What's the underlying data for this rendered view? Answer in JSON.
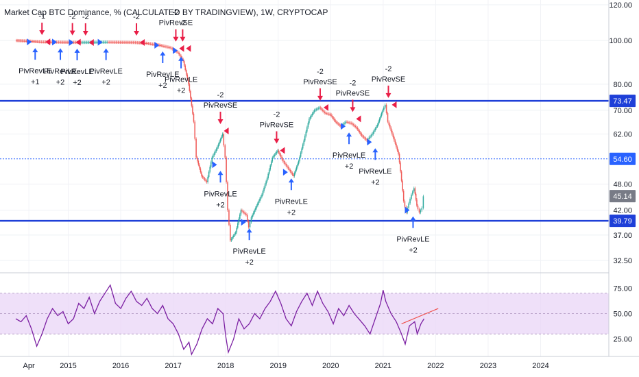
{
  "title": "Market Cap BTC Dominance, % (CALCULATED BY TRADINGVIEW), 1W, CRYPTOCAP",
  "colors": {
    "up": "#26a69a",
    "down": "#ef5350",
    "level": "#1e3fd8",
    "level_dashed": "#2962ff",
    "rsi": "#7b1fa2",
    "rsi_band": "#e9d5f7",
    "long_arrow": "#2962ff",
    "short_arrow": "#e91e47",
    "trendline": "#ef5350",
    "tag_grey": "#787b86"
  },
  "chart_data": [
    {
      "type": "candlestick",
      "title": "Market Cap BTC Dominance, % (CALCULATED BY TRADINGVIEW), 1W, CRYPTOCAP",
      "xlabel": "",
      "ylabel": "",
      "x_ticks": [
        {
          "x": 2014.25,
          "label": "Apr"
        },
        {
          "x": 2015.0,
          "label": "2015"
        },
        {
          "x": 2016.0,
          "label": "2016"
        },
        {
          "x": 2017.0,
          "label": "2017"
        },
        {
          "x": 2018.0,
          "label": "2018"
        },
        {
          "x": 2019.0,
          "label": "2019"
        },
        {
          "x": 2020.0,
          "label": "2020"
        },
        {
          "x": 2021.0,
          "label": "2021"
        },
        {
          "x": 2022.0,
          "label": "2022"
        },
        {
          "x": 2023.0,
          "label": "2023"
        },
        {
          "x": 2024.0,
          "label": "2024"
        }
      ],
      "xlim": [
        2013.7,
        2025.3
      ],
      "y_ticks": [
        32.5,
        37.0,
        42.0,
        48.0,
        62.0,
        70.0,
        80.0,
        100.0,
        120.0
      ],
      "ylim": [
        30.5,
        123
      ],
      "y_scale": "log",
      "series": [
        {
          "name": "",
          "points": [
            [
              2014.0,
              100.0
            ],
            [
              2014.25,
              99.7
            ],
            [
              2014.5,
              99.3
            ],
            [
              2014.75,
              99.2
            ],
            [
              2015.0,
              99.1
            ],
            [
              2015.25,
              99.0
            ],
            [
              2015.5,
              99.1
            ],
            [
              2015.75,
              99.2
            ],
            [
              2016.0,
              99.1
            ],
            [
              2016.25,
              99.0
            ],
            [
              2016.5,
              98.6
            ],
            [
              2016.75,
              97.6
            ],
            [
              2016.95,
              96.4
            ],
            [
              2017.1,
              94.0
            ],
            [
              2017.2,
              90.0
            ],
            [
              2017.3,
              80.0
            ],
            [
              2017.4,
              66.0
            ],
            [
              2017.45,
              55.0
            ],
            [
              2017.55,
              50.0
            ],
            [
              2017.65,
              48.5
            ],
            [
              2017.75,
              55.0
            ],
            [
              2017.85,
              58.0
            ],
            [
              2017.95,
              62.0
            ],
            [
              2018.0,
              55.0
            ],
            [
              2018.05,
              42.0
            ],
            [
              2018.1,
              36.0
            ],
            [
              2018.2,
              37.5
            ],
            [
              2018.3,
              42.0
            ],
            [
              2018.4,
              41.0
            ],
            [
              2018.45,
              38.5
            ],
            [
              2018.5,
              40.5
            ],
            [
              2018.6,
              43.0
            ],
            [
              2018.7,
              45.5
            ],
            [
              2018.8,
              49.5
            ],
            [
              2018.9,
              55.0
            ],
            [
              2019.0,
              57.0
            ],
            [
              2019.1,
              54.0
            ],
            [
              2019.2,
              52.0
            ],
            [
              2019.3,
              50.0
            ],
            [
              2019.4,
              54.0
            ],
            [
              2019.5,
              60.0
            ],
            [
              2019.6,
              67.0
            ],
            [
              2019.7,
              70.0
            ],
            [
              2019.8,
              71.0
            ],
            [
              2019.9,
              69.0
            ],
            [
              2020.0,
              68.5
            ],
            [
              2020.1,
              66.0
            ],
            [
              2020.2,
              64.5
            ],
            [
              2020.3,
              66.0
            ],
            [
              2020.4,
              65.5
            ],
            [
              2020.5,
              64.0
            ],
            [
              2020.6,
              61.5
            ],
            [
              2020.7,
              60.0
            ],
            [
              2020.8,
              62.0
            ],
            [
              2020.9,
              65.0
            ],
            [
              2021.0,
              70.0
            ],
            [
              2021.05,
              72.0
            ],
            [
              2021.1,
              66.0
            ],
            [
              2021.2,
              61.0
            ],
            [
              2021.3,
              56.0
            ],
            [
              2021.4,
              44.0
            ],
            [
              2021.45,
              41.5
            ],
            [
              2021.5,
              43.5
            ],
            [
              2021.55,
              45.5
            ],
            [
              2021.6,
              47.0
            ],
            [
              2021.65,
              43.0
            ],
            [
              2021.7,
              41.5
            ],
            [
              2021.75,
              42.5
            ],
            [
              2021.78,
              45.1
            ]
          ]
        }
      ],
      "levels": [
        {
          "value": 73.47,
          "style": "solid",
          "label": "73.47"
        },
        {
          "value": 54.6,
          "style": "dashed",
          "label": "54.60"
        },
        {
          "value": 39.79,
          "style": "solid",
          "label": "39.79"
        }
      ],
      "last_price": {
        "value": 45.14,
        "label": "45.14"
      },
      "signals": [
        {
          "x": 2014.37,
          "y": 99.3,
          "side": "long",
          "label": "PivRevLE",
          "count": "+1"
        },
        {
          "x": 2014.5,
          "y": 99.3,
          "side": "short",
          "label": "",
          "count": "-1"
        },
        {
          "x": 2014.85,
          "y": 99.2,
          "side": "long",
          "label": "PivRevLE",
          "count": "+2"
        },
        {
          "x": 2015.08,
          "y": 99.1,
          "side": "short",
          "label": "",
          "count": "-2"
        },
        {
          "x": 2015.17,
          "y": 99.0,
          "side": "long",
          "label": "PivRevLE",
          "count": "+2"
        },
        {
          "x": 2015.33,
          "y": 99.0,
          "side": "short",
          "label": "",
          "count": "-2"
        },
        {
          "x": 2015.72,
          "y": 99.1,
          "side": "long",
          "label": "PivRevLE",
          "count": "+2"
        },
        {
          "x": 2016.3,
          "y": 99.0,
          "side": "short",
          "label": "",
          "count": "-2"
        },
        {
          "x": 2016.8,
          "y": 97.6,
          "side": "long",
          "label": "PivRevLE",
          "count": "+2"
        },
        {
          "x": 2017.05,
          "y": 96.0,
          "side": "short",
          "label": "PivRevSE",
          "count": "-2"
        },
        {
          "x": 2017.15,
          "y": 95.0,
          "side": "long",
          "label": "PivRevLE",
          "count": "+2"
        },
        {
          "x": 2017.18,
          "y": 96.0,
          "side": "short",
          "label": "",
          "count": "-2"
        },
        {
          "x": 2017.9,
          "y": 63.0,
          "side": "short",
          "label": "PivRevSE",
          "count": "-2"
        },
        {
          "x": 2017.9,
          "y": 53.0,
          "side": "long",
          "label": "PivRevLE",
          "count": "+2"
        },
        {
          "x": 2018.45,
          "y": 39.5,
          "side": "long",
          "label": "PivRevLE",
          "count": "+2"
        },
        {
          "x": 2018.97,
          "y": 57.0,
          "side": "short",
          "label": "PivRevSE",
          "count": "-2"
        },
        {
          "x": 2019.25,
          "y": 51.0,
          "side": "long",
          "label": "PivRevLE",
          "count": "+2"
        },
        {
          "x": 2019.8,
          "y": 71.0,
          "side": "short",
          "label": "PivRevSE",
          "count": "-2"
        },
        {
          "x": 2020.35,
          "y": 64.5,
          "side": "long",
          "label": "PivRevLE",
          "count": "+2"
        },
        {
          "x": 2020.42,
          "y": 67.0,
          "side": "short",
          "label": "PivRevSE",
          "count": "-2"
        },
        {
          "x": 2020.85,
          "y": 59.5,
          "side": "long",
          "label": "PivRevLE",
          "count": "+2"
        },
        {
          "x": 2021.1,
          "y": 72.0,
          "side": "short",
          "label": "PivRevSE",
          "count": "-2"
        },
        {
          "x": 2021.57,
          "y": 42.0,
          "side": "long",
          "label": "PivRevLE",
          "count": "+2"
        }
      ]
    },
    {
      "type": "line",
      "title": "",
      "xlabel": "",
      "ylabel": "",
      "y_ticks": [
        25.0,
        50.0,
        75.0
      ],
      "ylim": [
        8,
        90
      ],
      "band": [
        30,
        70
      ],
      "series": [
        {
          "name": "",
          "points": [
            [
              2014.0,
              45
            ],
            [
              2014.1,
              42
            ],
            [
              2014.2,
              48
            ],
            [
              2014.3,
              35
            ],
            [
              2014.4,
              18
            ],
            [
              2014.5,
              30
            ],
            [
              2014.6,
              45
            ],
            [
              2014.7,
              55
            ],
            [
              2014.8,
              48
            ],
            [
              2014.9,
              52
            ],
            [
              2015.0,
              40
            ],
            [
              2015.1,
              45
            ],
            [
              2015.2,
              60
            ],
            [
              2015.3,
              55
            ],
            [
              2015.4,
              66
            ],
            [
              2015.5,
              50
            ],
            [
              2015.6,
              62
            ],
            [
              2015.7,
              70
            ],
            [
              2015.8,
              78
            ],
            [
              2015.9,
              60
            ],
            [
              2016.0,
              55
            ],
            [
              2016.1,
              65
            ],
            [
              2016.2,
              72
            ],
            [
              2016.3,
              62
            ],
            [
              2016.4,
              58
            ],
            [
              2016.5,
              65
            ],
            [
              2016.6,
              55
            ],
            [
              2016.7,
              50
            ],
            [
              2016.8,
              58
            ],
            [
              2016.9,
              45
            ],
            [
              2017.0,
              40
            ],
            [
              2017.1,
              30
            ],
            [
              2017.2,
              15
            ],
            [
              2017.3,
              22
            ],
            [
              2017.35,
              10
            ],
            [
              2017.45,
              20
            ],
            [
              2017.55,
              35
            ],
            [
              2017.65,
              45
            ],
            [
              2017.75,
              40
            ],
            [
              2017.85,
              55
            ],
            [
              2017.95,
              50
            ],
            [
              2018.0,
              28
            ],
            [
              2018.05,
              12
            ],
            [
              2018.15,
              25
            ],
            [
              2018.25,
              45
            ],
            [
              2018.35,
              35
            ],
            [
              2018.45,
              40
            ],
            [
              2018.55,
              50
            ],
            [
              2018.65,
              45
            ],
            [
              2018.75,
              55
            ],
            [
              2018.85,
              62
            ],
            [
              2018.95,
              72
            ],
            [
              2019.05,
              60
            ],
            [
              2019.15,
              45
            ],
            [
              2019.25,
              38
            ],
            [
              2019.35,
              52
            ],
            [
              2019.45,
              62
            ],
            [
              2019.55,
              70
            ],
            [
              2019.65,
              58
            ],
            [
              2019.75,
              72
            ],
            [
              2019.85,
              60
            ],
            [
              2019.95,
              52
            ],
            [
              2020.05,
              40
            ],
            [
              2020.15,
              55
            ],
            [
              2020.25,
              48
            ],
            [
              2020.35,
              58
            ],
            [
              2020.45,
              50
            ],
            [
              2020.55,
              44
            ],
            [
              2020.65,
              38
            ],
            [
              2020.75,
              30
            ],
            [
              2020.85,
              45
            ],
            [
              2020.95,
              60
            ],
            [
              2021.0,
              73
            ],
            [
              2021.05,
              62
            ],
            [
              2021.15,
              50
            ],
            [
              2021.25,
              42
            ],
            [
              2021.35,
              30
            ],
            [
              2021.42,
              20
            ],
            [
              2021.5,
              38
            ],
            [
              2021.6,
              42
            ],
            [
              2021.65,
              30
            ],
            [
              2021.72,
              40
            ],
            [
              2021.78,
              45
            ]
          ]
        }
      ],
      "trendline": [
        [
          2021.35,
          40
        ],
        [
          2022.05,
          55
        ]
      ]
    }
  ]
}
